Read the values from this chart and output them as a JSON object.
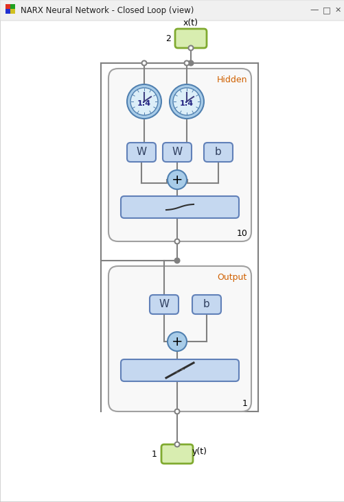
{
  "title": "NARX Neural Network - Closed Loop (view)",
  "bg_color": "#f0f0f0",
  "window_bg": "#ffffff",
  "box_fill": "#c5d8f0",
  "box_edge": "#6080b8",
  "group_edge": "#a0a0a0",
  "green_fill": "#d8edb0",
  "green_edge": "#80aa30",
  "ellipse_fill": "#a8cce8",
  "ellipse_edge": "#5080b0",
  "line_color": "#808080",
  "hidden_label": "Hidden",
  "output_label": "Output",
  "x_input_label": "x(t)",
  "y_output_label": "y(t)",
  "num_x": "2",
  "num_y": "1",
  "hidden_count": "10",
  "output_count": "1",
  "delay_label": "1:4",
  "orange_color": "#d06000"
}
